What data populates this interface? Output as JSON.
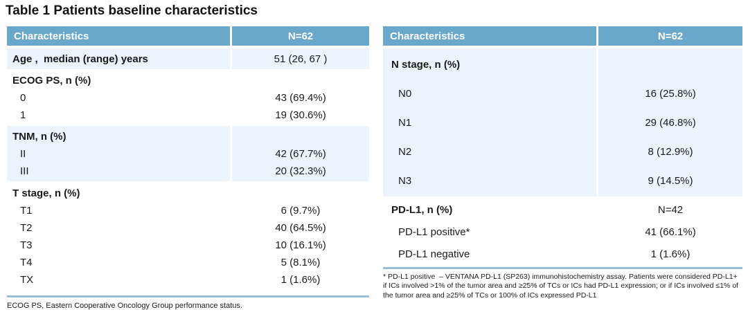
{
  "title": "Table 1 Patients baseline characteristics",
  "colors": {
    "header_bg": "#69A8CA",
    "header_text": "#FFFFFF",
    "band_bg": "#ECF3FA",
    "rule": "#95BEDB",
    "text": "#1A1A1A"
  },
  "left_table": {
    "header": [
      "Characteristics",
      "N=62"
    ],
    "sections": [
      {
        "rows": [
          {
            "label": "Age ,  median (range) years",
            "value": "51 (26, 67 )"
          }
        ]
      },
      {
        "rows": [
          {
            "label": "ECOG PS, n (%)",
            "value": ""
          },
          {
            "label": "0",
            "value": "43 (69.4%)"
          },
          {
            "label": "1",
            "value": "19 (30.6%)"
          }
        ]
      },
      {
        "rows": [
          {
            "label": "TNM, n (%)",
            "value": ""
          },
          {
            "label": "II",
            "value": "42 (67.7%)"
          },
          {
            "label": "III",
            "value": "20 (32.3%)"
          }
        ]
      },
      {
        "rows": [
          {
            "label": "T stage, n (%)",
            "value": ""
          },
          {
            "label": "T1",
            "value": "6 (9.7%)"
          },
          {
            "label": "T2",
            "value": "40 (64.5%)"
          },
          {
            "label": "T3",
            "value": "10 (16.1%)"
          },
          {
            "label": "T4",
            "value": "5 (8.1%)"
          },
          {
            "label": "TX",
            "value": "1 (1.6%)"
          }
        ]
      }
    ],
    "footnote": "ECOG PS, Eastern Cooperative Oncology Group performance status."
  },
  "right_table": {
    "header": [
      "Characteristics",
      "N=62"
    ],
    "sections": [
      {
        "rows": [
          {
            "label": "N stage, n (%)",
            "value": ""
          },
          {
            "label": "N0",
            "value": "16 (25.8%)"
          },
          {
            "label": "N1",
            "value": "29 (46.8%)"
          },
          {
            "label": "N2",
            "value": "8 (12.9%)"
          },
          {
            "label": "N3",
            "value": "9 (14.5%)"
          }
        ]
      },
      {
        "rows": [
          {
            "label": "PD-L1, n (%)",
            "value": "N=42"
          },
          {
            "label": "PD-L1 positive*",
            "value": "41 (66.1%)"
          },
          {
            "label": "PD-L1 negative",
            "value": "1 (1.6%)"
          }
        ]
      }
    ],
    "footnote": "* PD-L1 positive  – VENTANA PD-L1 (SP263) immunohistochemistry assay. Patients were considered PD-L1+ if ICs involved >1% of the tumor area and ≥25% of TCs or ICs had PD-L1 expression; or if ICs involved ≤1% of the tumor area and ≥25% of TCs or 100% of ICs expressed PD-L1"
  }
}
